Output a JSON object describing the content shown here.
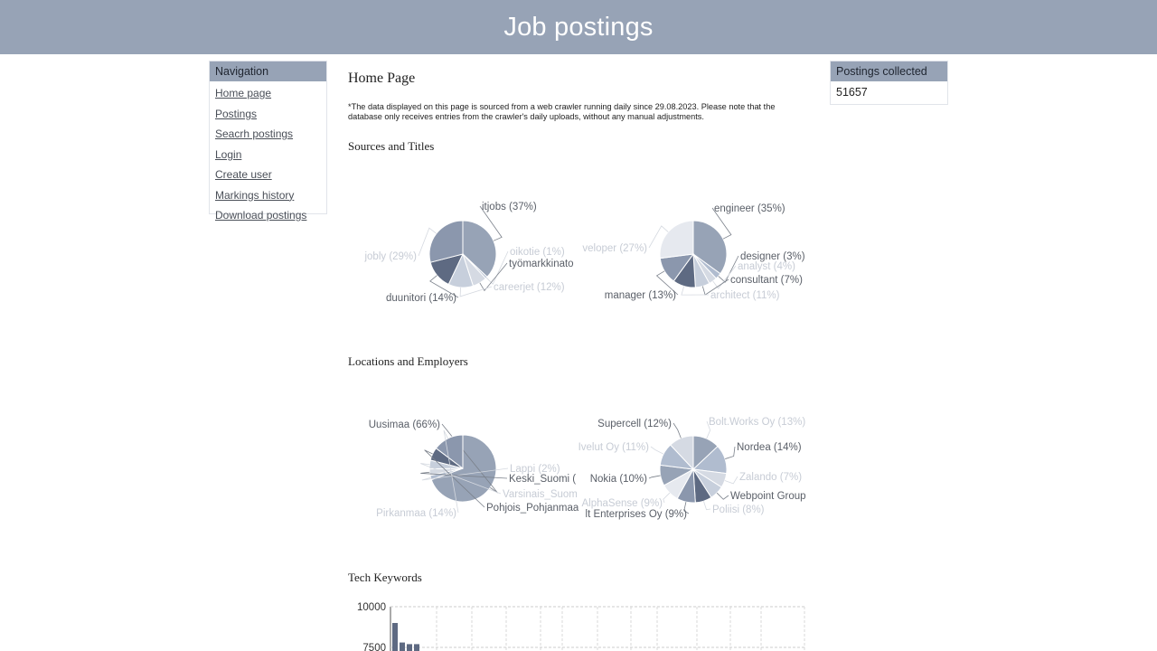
{
  "header": {
    "title": "Job postings"
  },
  "navigation": {
    "title": "Navigation",
    "items": [
      {
        "label": "Home page"
      },
      {
        "label": "Postings"
      },
      {
        "label": "Seacrh postings"
      },
      {
        "label": "Login"
      },
      {
        "label": "Create user"
      },
      {
        "label": "Markings history"
      },
      {
        "label": "Download postings"
      }
    ]
  },
  "stats": {
    "title": "Postings collected",
    "value": "51657"
  },
  "main": {
    "title": "Home Page",
    "disclaimer": "*The data displayed on this page is sourced from a web crawler running daily since 29.08.2023. Please note that the database only receives entries from the crawler's daily uploads, without any manual adjustments.",
    "sections": [
      {
        "title": "Sources and Titles"
      },
      {
        "title": "Locations and Employers"
      },
      {
        "title": "Tech Keywords"
      }
    ]
  },
  "colors": {
    "header_bg": "#97a3b6",
    "slices": [
      "#97a3b6",
      "#b0bccf",
      "#d5dae3",
      "#c7cfdc",
      "#5e6a82",
      "#8b97ad",
      "#e6e9ef"
    ]
  },
  "chart_data": [
    {
      "type": "pie",
      "slices": [
        {
          "label": "itjobs (37%)",
          "value": 37
        },
        {
          "label": "oikotie (1%)",
          "value": 1
        },
        {
          "label": "työmarkkinato",
          "value": 7
        },
        {
          "label": "careerjet (12%)",
          "value": 12
        },
        {
          "label": "duunitori (14%)",
          "value": 14
        },
        {
          "label": "jobly (29%)",
          "value": 29
        }
      ]
    },
    {
      "type": "pie",
      "slices": [
        {
          "label": "engineer (35%)",
          "value": 35
        },
        {
          "label": "designer (3%)",
          "value": 3
        },
        {
          "label": "analyst (4%)",
          "value": 4
        },
        {
          "label": "consultant (7%)",
          "value": 7
        },
        {
          "label": "architect (11%)",
          "value": 11
        },
        {
          "label": "manager (13%)",
          "value": 13
        },
        {
          "label": "veloper (27%)",
          "value": 27
        }
      ]
    },
    {
      "type": "pie",
      "slices": [
        {
          "label": "Uusimaa (66%)",
          "value": 66
        },
        {
          "label": "Lappi (2%)",
          "value": 2
        },
        {
          "label": "Keski_Suomi (",
          "value": 3
        },
        {
          "label": "Varsinais_Suom",
          "value": 4
        },
        {
          "label": "Pohjois_Pohjanmaa",
          "value": 6
        },
        {
          "label": "Pirkanmaa (14%)",
          "value": 14
        }
      ]
    },
    {
      "type": "pie",
      "slices": [
        {
          "label": "Bolt.Works Oy (13%)",
          "value": 13
        },
        {
          "label": "Nordea (14%)",
          "value": 14
        },
        {
          "label": "Zalando (7%)",
          "value": 7
        },
        {
          "label": "Webpoint Group",
          "value": 7
        },
        {
          "label": "Poliisi (8%)",
          "value": 8
        },
        {
          "label": "lt Enterprises Oy (9%)",
          "value": 9
        },
        {
          "label": "AlphaSense (9%)",
          "value": 9
        },
        {
          "label": "Nokia (10%)",
          "value": 10
        },
        {
          "label": "Ivelut Oy (11%)",
          "value": 11
        },
        {
          "label": "Supercell (12%)",
          "value": 12
        }
      ]
    },
    {
      "type": "bar",
      "title": "Tech Keywords",
      "ylim": [
        7500,
        10000
      ],
      "yticks": [
        10000,
        7500
      ],
      "values": [
        9000,
        7800,
        7700,
        7700
      ],
      "grid": true
    }
  ]
}
